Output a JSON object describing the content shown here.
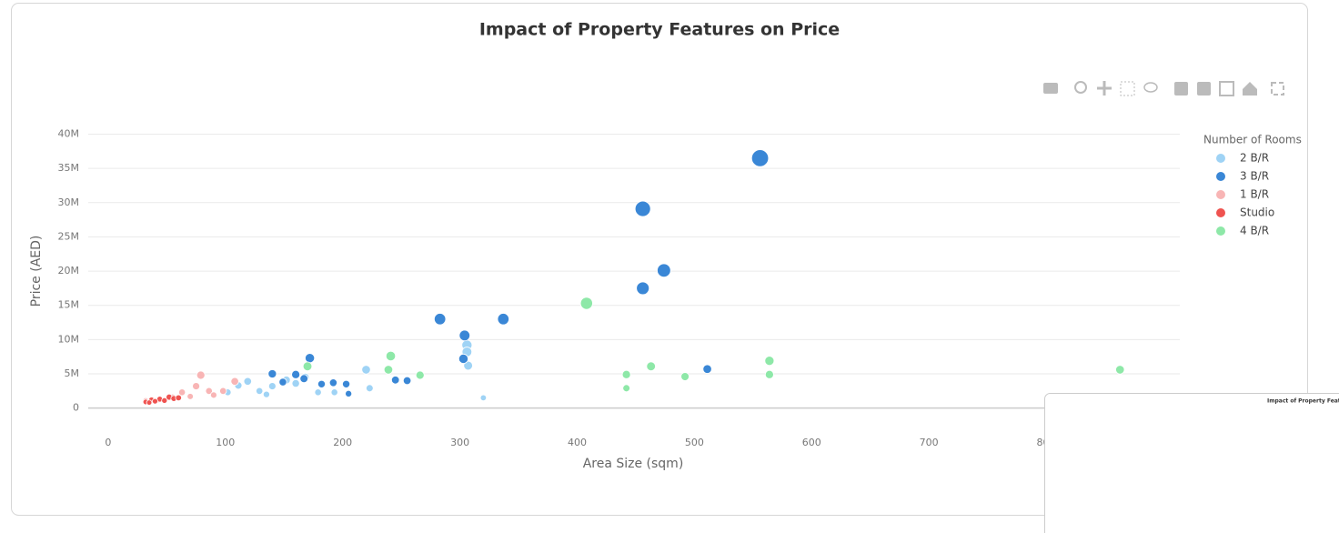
{
  "chart_data": {
    "type": "scatter",
    "title": "Impact of Property Features on Price",
    "x_label": "Area Size (sqm)",
    "y_label": "Price (AED)",
    "legend_title": "Number of Rooms",
    "legend_position": "right",
    "grid": true,
    "xlim": [
      -17,
      914
    ],
    "ylim": [
      -3500000,
      41000000
    ],
    "xticks": [
      0,
      100,
      200,
      300,
      400,
      500,
      600,
      700,
      800
    ],
    "yticks": [
      {
        "value": 0,
        "label": "0"
      },
      {
        "value": 5000000,
        "label": "5M"
      },
      {
        "value": 10000000,
        "label": "10M"
      },
      {
        "value": 15000000,
        "label": "15M"
      },
      {
        "value": 20000000,
        "label": "20M"
      },
      {
        "value": 25000000,
        "label": "25M"
      },
      {
        "value": 30000000,
        "label": "30M"
      },
      {
        "value": 35000000,
        "label": "35M"
      },
      {
        "value": 40000000,
        "label": "40M"
      }
    ],
    "series": [
      {
        "name": "2 B/R",
        "color": "#9fd3f5",
        "x": [
          306,
          306,
          307,
          220,
          223,
          320,
          119,
          129,
          140,
          152,
          168,
          102,
          111,
          179,
          193,
          135,
          160
        ],
        "values": [
          9200000,
          8200000,
          6200000,
          5600000,
          2900000,
          1500000,
          3900000,
          2500000,
          3200000,
          4100000,
          4500000,
          2300000,
          3300000,
          2300000,
          2300000,
          2000000,
          3600000
        ]
      },
      {
        "name": "3 B/R",
        "color": "#3a87d6",
        "x": [
          556,
          456,
          474,
          456,
          337,
          283,
          304,
          303,
          511,
          172,
          140,
          160,
          182,
          203,
          245,
          255,
          149,
          205,
          192,
          167
        ],
        "values": [
          36500000,
          29100000,
          20100000,
          17500000,
          13000000,
          13000000,
          10600000,
          7200000,
          5700000,
          7300000,
          5000000,
          4900000,
          3500000,
          3500000,
          4100000,
          4000000,
          3800000,
          2100000,
          3700000,
          4300000
        ]
      },
      {
        "name": "1 B/R",
        "color": "#f8b5b5",
        "x": [
          79,
          75,
          63,
          86,
          55,
          43,
          108,
          32,
          98,
          70,
          90
        ],
        "values": [
          4800000,
          3200000,
          2300000,
          2500000,
          1600000,
          1200000,
          3900000,
          1100000,
          2500000,
          1700000,
          1900000
        ]
      },
      {
        "name": "Studio",
        "color": "#ef5350",
        "x": [
          37,
          44,
          52,
          32,
          40,
          48,
          56,
          60,
          35
        ],
        "values": [
          1200000,
          1300000,
          1600000,
          900000,
          1000000,
          1100000,
          1400000,
          1500000,
          800000
        ]
      },
      {
        "name": "4 B/R",
        "color": "#8ee8a8",
        "x": [
          408,
          564,
          564,
          863,
          463,
          442,
          442,
          492,
          241,
          239,
          266,
          170
        ],
        "values": [
          15300000,
          6900000,
          4900000,
          5600000,
          6100000,
          4900000,
          2900000,
          4600000,
          7600000,
          5600000,
          4800000,
          6100000
        ]
      }
    ]
  }
}
